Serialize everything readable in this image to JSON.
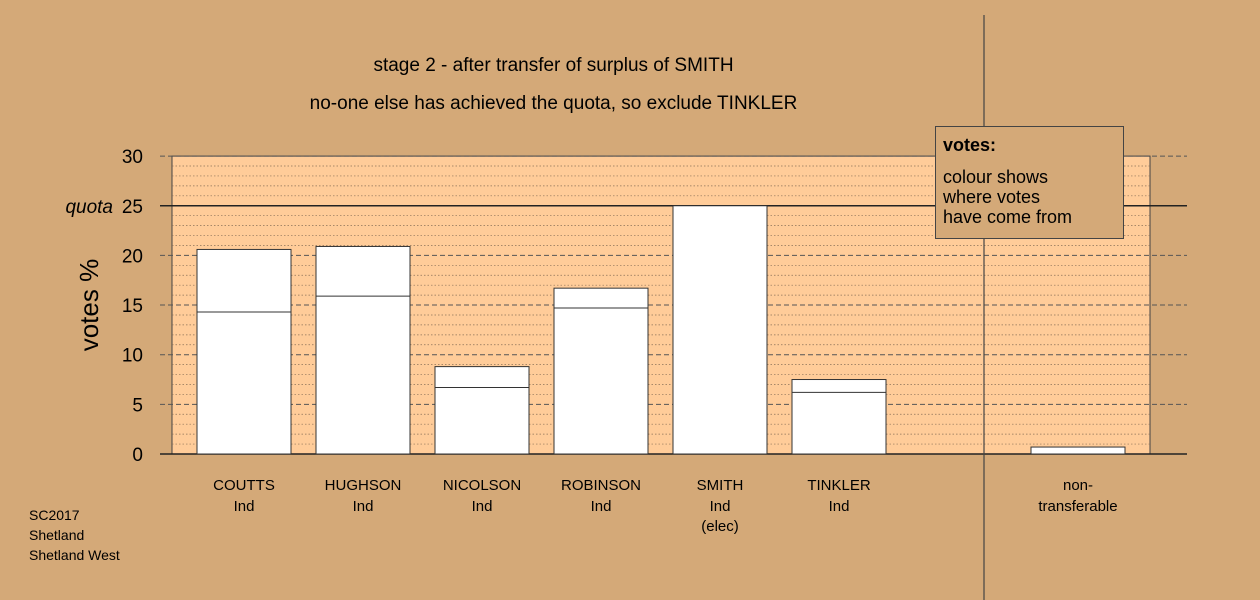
{
  "header": {
    "title": "stage 2 - after transfer of surplus of SMITH",
    "subtitle": "no-one else has achieved the quota, so exclude TINKLER"
  },
  "footer": [
    "SC2017",
    "Shetland",
    "Shetland West"
  ],
  "legend": {
    "title": "votes:",
    "lines": [
      "colour shows",
      "where votes",
      "have come from"
    ]
  },
  "colors": {
    "background": "#d4a978",
    "plot_area": "#ffcc99",
    "bar_fill": "#ffffff",
    "bar_stroke": "#333333"
  },
  "chart_data": {
    "type": "bar",
    "ylabel": "votes %",
    "ylim": [
      0,
      30
    ],
    "yticks": [
      0,
      5,
      10,
      15,
      20,
      25,
      30
    ],
    "quota": {
      "label": "quota",
      "value": 25
    },
    "grid": true,
    "categories": [
      {
        "name": "COUTTS",
        "party": "Ind",
        "note": ""
      },
      {
        "name": "HUGHSON",
        "party": "Ind",
        "note": ""
      },
      {
        "name": "NICOLSON",
        "party": "Ind",
        "note": ""
      },
      {
        "name": "ROBINSON",
        "party": "Ind",
        "note": ""
      },
      {
        "name": "SMITH",
        "party": "Ind",
        "note": "(elec)"
      },
      {
        "name": "TINKLER",
        "party": "Ind",
        "note": ""
      }
    ],
    "series": [
      {
        "values": [
          14.3,
          15.9,
          6.7,
          14.7,
          25.0,
          6.2
        ]
      },
      {
        "values": [
          6.3,
          5.0,
          2.1,
          2.0,
          0.0,
          1.3
        ]
      }
    ],
    "non_transferable": {
      "label": "non-\ntransferable",
      "value": 0.7
    }
  }
}
